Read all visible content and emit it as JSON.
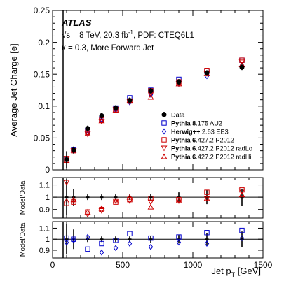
{
  "chart_data": [
    {
      "type": "scatter",
      "panel": "main",
      "ylabel": "Average Jet Charge [e]",
      "ylim": [
        0,
        0.25
      ],
      "yticks": [
        0,
        0.05,
        0.1,
        0.15,
        0.2,
        0.25
      ],
      "ytick_labels": [
        "0",
        "0.05",
        "0.1",
        "0.15",
        "0.2",
        "0.25"
      ],
      "xlim": [
        0,
        1500
      ],
      "x": [
        100,
        150,
        250,
        350,
        450,
        550,
        700,
        900,
        1100,
        1350
      ],
      "annotations": {
        "experiment": "ATLAS",
        "line1_prefix": "√",
        "line1_s": "s",
        "line1_middle": " = 8 TeV, 20.3 fb",
        "line1_sup": "-1",
        "line1_suffix": ", PDF: CTEQ6L1",
        "line2": "κ = 0.3, More Forward Jet"
      },
      "legend_position": "center-right",
      "series": [
        {
          "key": "data",
          "name": "Data",
          "legend_bold": "",
          "legend_rest": "Data",
          "marker": "filled-circle",
          "color": "#000000",
          "values": [
            0.016,
            0.031,
            0.065,
            0.085,
            0.097,
            0.109,
            0.124,
            0.138,
            0.152,
            0.161
          ]
        },
        {
          "key": "p8",
          "name": "Pythia 8.175 AU2",
          "legend_bold": "Pythia 8",
          "legend_rest": ".175 AU2",
          "marker": "open-square",
          "color": "#0000cc",
          "values": [
            0.017,
            0.031,
            0.062,
            0.08,
            0.097,
            0.113,
            0.125,
            0.142,
            0.155,
            0.172
          ]
        },
        {
          "key": "hw",
          "name": "Herwig++ 2.63 EE3",
          "legend_bold": "Herwig++",
          "legend_rest": " 2.63 EE3",
          "marker": "open-diamond",
          "color": "#0000cc",
          "values": [
            0.017,
            0.031,
            0.059,
            0.078,
            0.094,
            0.106,
            0.118,
            0.135,
            0.147,
            0.164
          ]
        },
        {
          "key": "p6",
          "name": "Pythia 6.427.2 P2012",
          "legend_bold": "Pythia 6",
          "legend_rest": ".427.2 P2012",
          "marker": "open-square",
          "color": "#cc0000",
          "values": [
            0.015,
            0.03,
            0.059,
            0.078,
            0.094,
            0.108,
            0.124,
            0.138,
            0.156,
            0.172
          ]
        },
        {
          "key": "p6lo",
          "name": "Pythia 6.427.2 P2012 radLo",
          "legend_bold": "Pythia 6",
          "legend_rest": ".427.2 P2012 radLo",
          "marker": "open-triangle-down",
          "color": "#cc0000",
          "values": [
            0.018,
            0.03,
            0.056,
            0.076,
            0.095,
            0.107,
            0.119,
            0.135,
            0.151,
            0.169
          ]
        },
        {
          "key": "p6hi",
          "name": "Pythia 6.427.2 P2012 radHi",
          "legend_bold": "Pythia 6",
          "legend_rest": ".427.2 P2012 radHi",
          "marker": "open-triangle-up",
          "color": "#cc0000",
          "values": [
            0.015,
            0.031,
            0.057,
            0.077,
            0.094,
            0.109,
            0.114,
            0.135,
            0.151,
            0.165
          ]
        }
      ]
    },
    {
      "type": "scatter",
      "panel": "ratio-pythia6",
      "ylabel": "Model/Data",
      "ylim": [
        0.83,
        1.16
      ],
      "yticks": [
        0.9,
        1.0,
        1.1
      ],
      "ytick_labels": [
        "0.9",
        "1",
        "1.1"
      ],
      "xlim": [
        0,
        1500
      ],
      "x": [
        100,
        150,
        250,
        350,
        450,
        550,
        700,
        900,
        1100,
        1350
      ],
      "series": [
        {
          "key": "data",
          "values": [
            1,
            1,
            1,
            1,
            1,
            1,
            1,
            1,
            1,
            1
          ]
        },
        {
          "key": "p6",
          "values": [
            0.95,
            0.96,
            0.88,
            0.9,
            0.96,
            0.98,
            0.99,
            0.98,
            1.04,
            1.06
          ]
        },
        {
          "key": "p6lo",
          "values": [
            1.12,
            0.97,
            0.86,
            0.89,
            0.97,
            0.97,
            0.96,
            0.97,
            0.99,
            1.05
          ]
        },
        {
          "key": "p6hi",
          "values": [
            0.97,
            0.98,
            0.88,
            0.91,
            0.97,
            1.0,
            0.92,
            0.97,
            0.99,
            1.02
          ]
        }
      ]
    },
    {
      "type": "scatter",
      "panel": "ratio-other",
      "ylabel": "Model/Data",
      "ylim": [
        0.83,
        1.16
      ],
      "yticks": [
        0.9,
        1.0,
        1.1
      ],
      "ytick_labels": [
        "0.9",
        "1",
        "1.1"
      ],
      "xlim": [
        0,
        1500
      ],
      "xticks": [
        0,
        500,
        1000,
        1500
      ],
      "xtick_labels": [
        "0",
        "500",
        "1000",
        "1500"
      ],
      "xlabel_main": "Jet p",
      "xlabel_sub": "T",
      "xlabel_unit": " [GeV]",
      "x": [
        100,
        150,
        250,
        350,
        450,
        550,
        700,
        900,
        1100,
        1350
      ],
      "series": [
        {
          "key": "data",
          "values": [
            1,
            1,
            1,
            1,
            1,
            1,
            1,
            1,
            1,
            1
          ]
        },
        {
          "key": "p8",
          "values": [
            1.01,
            1.0,
            0.91,
            0.96,
            0.99,
            1.05,
            1.01,
            1.02,
            1.06,
            1.08
          ]
        },
        {
          "key": "hw",
          "values": [
            0.97,
            0.99,
            1.02,
            0.88,
            0.92,
            0.96,
            0.93,
            0.97,
            0.96,
            1.01
          ]
        }
      ]
    }
  ]
}
